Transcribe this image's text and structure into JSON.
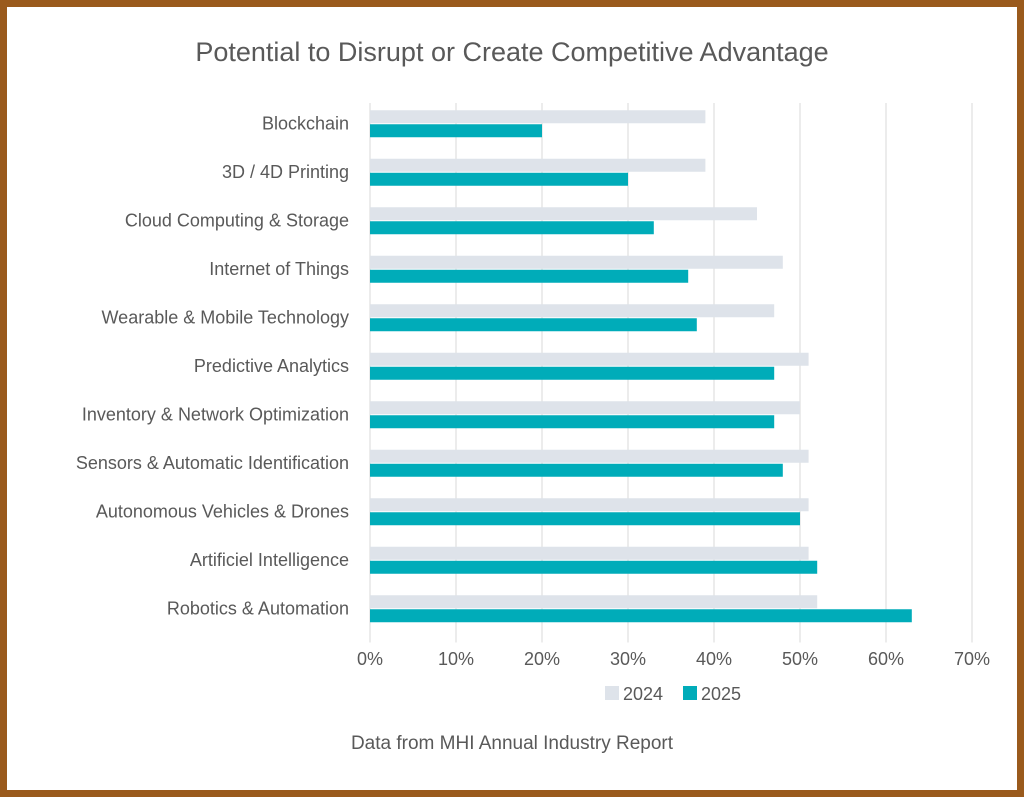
{
  "chart_data": {
    "type": "bar",
    "orientation": "horizontal",
    "title": "Potential to Disrupt or Create Competitive Advantage",
    "caption": "Data from MHI Annual Industry Report",
    "categories": [
      "Blockchain",
      "3D / 4D Printing",
      "Cloud Computing & Storage",
      "Internet of Things",
      "Wearable & Mobile Technology",
      "Predictive Analytics",
      "Inventory & Network Optimization",
      "Sensors & Automatic Identification",
      "Autonomous Vehicles & Drones",
      "Artificiel Intelligence",
      "Robotics & Automation"
    ],
    "series": [
      {
        "name": "2024",
        "color": "#dee3ea",
        "values": [
          39,
          39,
          45,
          48,
          47,
          51,
          50,
          51,
          51,
          51,
          52
        ]
      },
      {
        "name": "2025",
        "color": "#00acb9",
        "values": [
          20,
          30,
          33,
          37,
          38,
          47,
          47,
          48,
          50,
          52,
          63
        ]
      }
    ],
    "xlim": [
      0,
      70
    ],
    "xticks": [
      "0%",
      "10%",
      "20%",
      "30%",
      "40%",
      "50%",
      "60%",
      "70%"
    ],
    "grid": true,
    "legend": "bottom",
    "border_color": "#9a5a1c"
  }
}
